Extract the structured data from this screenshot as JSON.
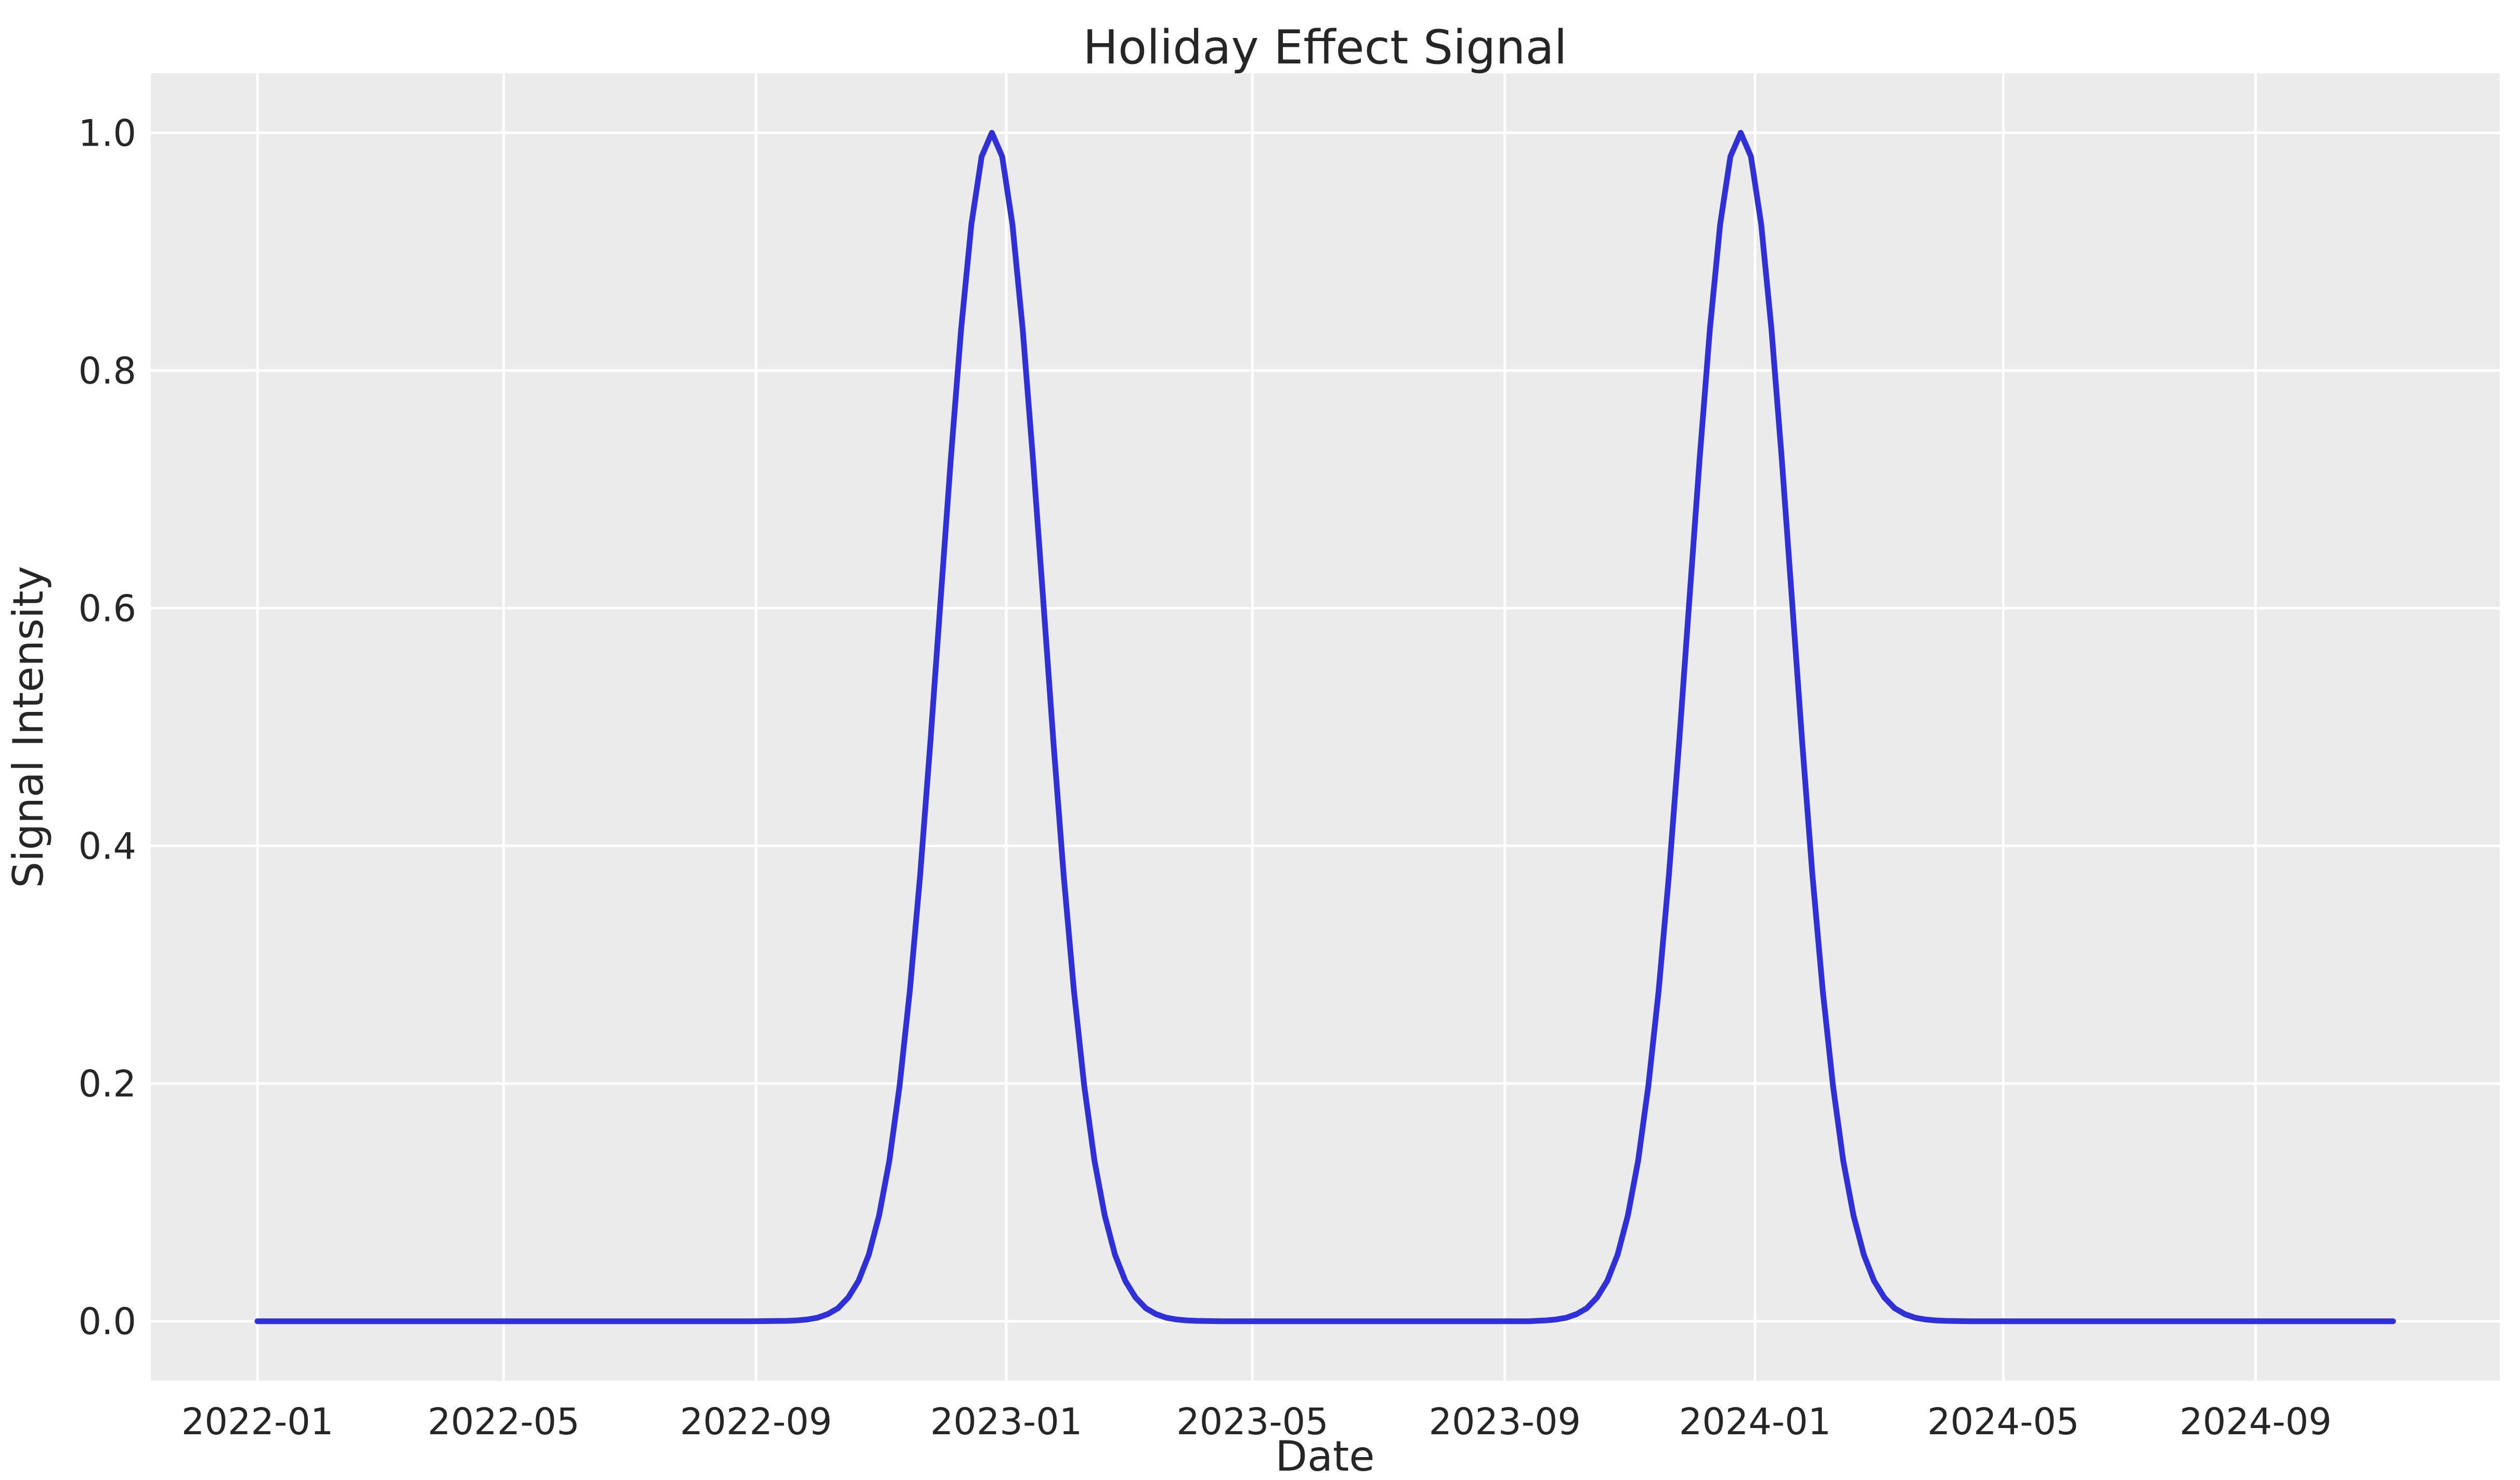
{
  "figure": {
    "background_color": "#ffffff",
    "axes_background_color": "#ebebeb",
    "grid_color": "#ffffff",
    "text_color": "#262626"
  },
  "chart_data": {
    "type": "line",
    "title": "Holiday Effect Signal",
    "xlabel": "Date",
    "ylabel": "Signal Intensity",
    "grid": true,
    "legend": false,
    "x_epoch_date": "2022-01-01",
    "x_end_date": "2024-11-07",
    "xlim_days": [
      -52,
      1093
    ],
    "ylim": [
      -0.05,
      1.05
    ],
    "x_tick_labels": [
      "2022-01",
      "2022-05",
      "2022-09",
      "2023-01",
      "2023-05",
      "2023-09",
      "2024-01",
      "2024-05",
      "2024-09"
    ],
    "x_tick_days": [
      0,
      120,
      243,
      365,
      485,
      608,
      730,
      851,
      974
    ],
    "y_tick_labels": [
      "0.0",
      "0.2",
      "0.4",
      "0.6",
      "0.8",
      "1.0"
    ],
    "y_tick_values": [
      0,
      0.2,
      0.4,
      0.6,
      0.8,
      1.0
    ],
    "series": [
      {
        "name": "holiday-effect-signal",
        "color": "#3030d8",
        "line_width": 11,
        "peak_dates": [
          "2022-12-25",
          "2023-12-25"
        ],
        "peak_value": 1.0,
        "sigma_days": 25,
        "x_days": [
          0,
          30,
          60,
          90,
          120,
          150,
          180,
          210,
          240,
          258,
          263,
          268,
          273,
          278,
          283,
          288,
          293,
          298,
          303,
          308,
          313,
          318,
          323,
          328,
          333,
          338,
          343,
          348,
          353,
          358,
          363,
          368,
          373,
          378,
          383,
          388,
          393,
          398,
          403,
          408,
          413,
          418,
          423,
          428,
          433,
          438,
          443,
          448,
          453,
          458,
          470,
          500,
          530,
          560,
          590,
          620,
          623,
          628,
          633,
          638,
          643,
          648,
          653,
          658,
          663,
          668,
          673,
          678,
          683,
          688,
          693,
          698,
          703,
          708,
          713,
          718,
          723,
          728,
          733,
          738,
          743,
          748,
          753,
          758,
          763,
          768,
          773,
          778,
          783,
          788,
          793,
          798,
          803,
          808,
          813,
          818,
          823,
          835,
          865,
          895,
          925,
          955,
          985,
          1015,
          1041
        ],
        "y": [
          0,
          0,
          0,
          0,
          0,
          0,
          0,
          0,
          0,
          0.0003,
          0.0007,
          0.0015,
          0.003,
          0.006,
          0.011,
          0.02,
          0.034,
          0.056,
          0.089,
          0.135,
          0.198,
          0.278,
          0.375,
          0.487,
          0.607,
          0.726,
          0.835,
          0.923,
          0.98,
          1,
          0.98,
          0.923,
          0.835,
          0.726,
          0.607,
          0.487,
          0.375,
          0.278,
          0.198,
          0.135,
          0.089,
          0.056,
          0.034,
          0.02,
          0.011,
          0.006,
          0.003,
          0.0015,
          0.0007,
          0.0003,
          0,
          0,
          0,
          0,
          0,
          0,
          0.0003,
          0.0007,
          0.0015,
          0.003,
          0.006,
          0.011,
          0.02,
          0.034,
          0.056,
          0.089,
          0.135,
          0.198,
          0.278,
          0.375,
          0.487,
          0.607,
          0.726,
          0.835,
          0.923,
          0.98,
          1,
          0.98,
          0.923,
          0.835,
          0.726,
          0.607,
          0.487,
          0.375,
          0.278,
          0.198,
          0.135,
          0.089,
          0.056,
          0.034,
          0.02,
          0.011,
          0.006,
          0.003,
          0.0015,
          0.0007,
          0.0003,
          0,
          0,
          0,
          0,
          0,
          0,
          0,
          0
        ]
      }
    ]
  }
}
